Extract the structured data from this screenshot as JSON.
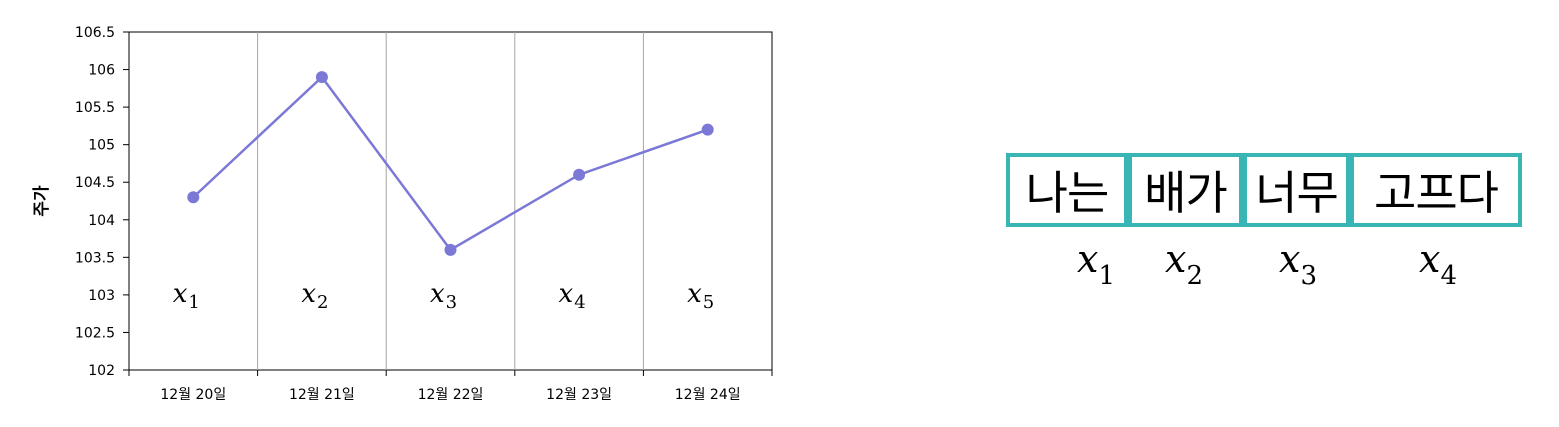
{
  "chart_data": {
    "type": "line",
    "categories": [
      "12월 20일",
      "12월 21일",
      "12월 22일",
      "12월 23일",
      "12월 24일"
    ],
    "values": [
      104.3,
      105.9,
      103.6,
      104.6,
      105.2
    ],
    "ylabel": "주가",
    "xlabel": "",
    "ylim": [
      102,
      106.5
    ],
    "yticks": [
      "102",
      "102.5",
      "103",
      "103.5",
      "104",
      "104.5",
      "105",
      "105.5",
      "106",
      "106.5"
    ],
    "line_color": "#7b78d6",
    "grid": "vertical separators between categories",
    "point_labels": [
      {
        "base": "x",
        "sub": "1"
      },
      {
        "base": "x",
        "sub": "2"
      },
      {
        "base": "x",
        "sub": "3"
      },
      {
        "base": "x",
        "sub": "4"
      },
      {
        "base": "x",
        "sub": "5"
      }
    ]
  },
  "tokens": [
    {
      "text": "나는",
      "var": "x",
      "sub": "1"
    },
    {
      "text": "배가",
      "var": "x",
      "sub": "2"
    },
    {
      "text": "너무",
      "var": "x",
      "sub": "3"
    },
    {
      "text": "고프다",
      "var": "x",
      "sub": "4"
    }
  ],
  "colors": {
    "token_border": "#3ab5b6",
    "series": "#7b78d6",
    "grid": "#a6a6a6"
  }
}
